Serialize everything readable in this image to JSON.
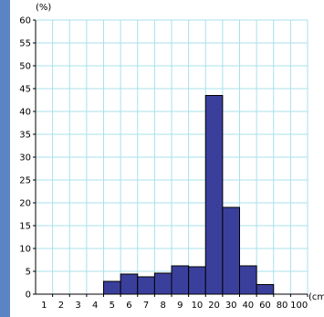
{
  "chart_data": {
    "type": "bar",
    "y_unit_label": "(%)",
    "x_unit_label": "(cm",
    "xlabel": "",
    "ylabel": "",
    "ylim": [
      0,
      60
    ],
    "y_ticks": [
      "0",
      "5",
      "10",
      "15",
      "20",
      "25",
      "30",
      "35",
      "40",
      "45",
      "50",
      "55",
      "60"
    ],
    "x_ticks": [
      "1",
      "2",
      "3",
      "4",
      "5",
      "6",
      "7",
      "8",
      "9",
      "10",
      "20",
      "30",
      "40",
      "60",
      "80",
      "100"
    ],
    "bins": [
      {
        "from": "4",
        "to": "5",
        "value": 2.8
      },
      {
        "from": "5",
        "to": "6",
        "value": 4.4
      },
      {
        "from": "6",
        "to": "7",
        "value": 3.8
      },
      {
        "from": "7",
        "to": "8",
        "value": 4.6
      },
      {
        "from": "8",
        "to": "9",
        "value": 6.2
      },
      {
        "from": "9",
        "to": "10",
        "value": 6.0
      },
      {
        "from": "10",
        "to": "20",
        "value": 43.5
      },
      {
        "from": "20",
        "to": "30",
        "value": 19.0
      },
      {
        "from": "30",
        "to": "40",
        "value": 6.2
      },
      {
        "from": "40",
        "to": "60",
        "value": 2.1
      }
    ],
    "grid": true,
    "bar_color": "#3b3f9c",
    "grid_color": "#a9e0ec"
  }
}
